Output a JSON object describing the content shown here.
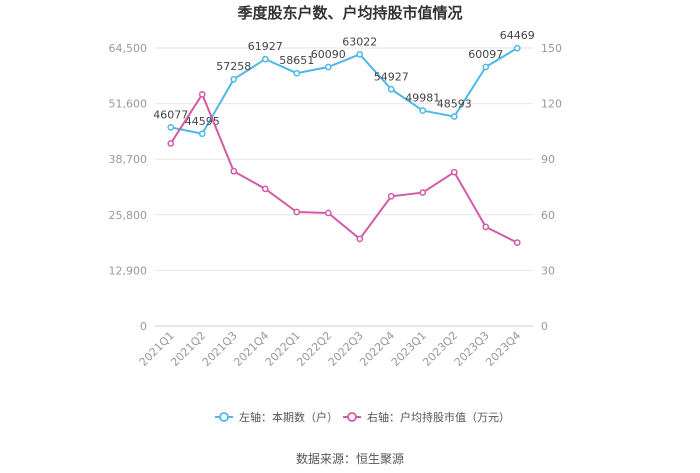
{
  "chart_data": {
    "type": "line",
    "title": "季度股东户数、户均持股市值情况",
    "categories": [
      "2021Q1",
      "2021Q2",
      "2021Q3",
      "2021Q4",
      "2022Q1",
      "2022Q2",
      "2022Q3",
      "2022Q4",
      "2023Q1",
      "2023Q2",
      "2023Q3",
      "2023Q4"
    ],
    "y_left": {
      "ticks": [
        "0",
        "12,900",
        "25,800",
        "38,700",
        "51,600",
        "64,500"
      ],
      "min": 0,
      "max": 64500
    },
    "y_right": {
      "ticks": [
        "0",
        "30",
        "60",
        "90",
        "120",
        "150"
      ],
      "min": 0,
      "max": 150
    },
    "series": [
      {
        "name": "左轴：本期数（户）",
        "axis": "left",
        "color": "#4db8e8",
        "values": [
          46077,
          44595,
          57258,
          61927,
          58651,
          60090,
          63022,
          54927,
          49981,
          48593,
          60097,
          64469
        ],
        "labels": [
          "46077",
          "44595",
          "57258",
          "61927",
          "58651",
          "60090",
          "63022",
          "54927",
          "49981",
          "48593",
          "60097",
          "64469"
        ]
      },
      {
        "name": "右轴：户均持股市值（万元）",
        "axis": "right",
        "color": "#d45aa8",
        "values": [
          98.5,
          125,
          83.5,
          74,
          61.5,
          61,
          47,
          70,
          72,
          83,
          53.5,
          45
        ]
      }
    ],
    "grid": true,
    "legend_position": "bottom"
  },
  "source": "数据来源：恒生聚源"
}
